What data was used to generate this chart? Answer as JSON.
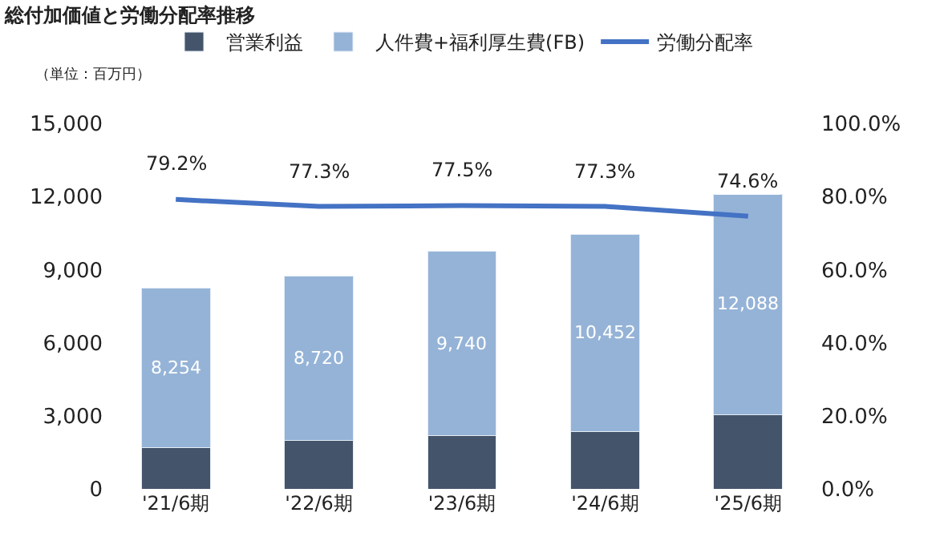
{
  "chart_data": {
    "type": "bar",
    "title": "総付加価値と労働分配率推移",
    "annotations": [
      "（単位：百万円）"
    ],
    "categories": [
      "'21/6期",
      "'22/6期",
      "'23/6期",
      "'24/6期",
      "'25/6期"
    ],
    "stacked": true,
    "legend": "top",
    "totals": [
      "8,254",
      "8,720",
      "9,740",
      "10,452",
      "12,088"
    ],
    "series": [
      {
        "name": "営業利益",
        "color": "#44546a",
        "values": [
          1700,
          2000,
          2200,
          2350,
          3050
        ]
      },
      {
        "name": "人件費+福利厚生費(FB)",
        "color": "#95b3d7",
        "values": [
          6554,
          6720,
          7540,
          8102,
          9038
        ]
      },
      {
        "name": "労働分配率",
        "type": "line",
        "axis": "y2",
        "color": "#4472c4",
        "marker": "none",
        "values": [
          79.2,
          77.3,
          77.5,
          77.3,
          74.6
        ],
        "value_labels": [
          "79.2%",
          "77.3%",
          "77.5%",
          "77.3%",
          "74.6%"
        ]
      }
    ],
    "ylim": [
      0,
      15000
    ],
    "yticks": [
      {
        "value": 0,
        "label": "0"
      },
      {
        "value": 3000,
        "label": "3,000"
      },
      {
        "value": 6000,
        "label": "6,000"
      },
      {
        "value": 9000,
        "label": "9,000"
      },
      {
        "value": 12000,
        "label": "12,000"
      },
      {
        "value": 15000,
        "label": "15,000"
      }
    ],
    "y2lim": [
      0,
      100
    ],
    "y2ticks": [
      {
        "value": 0,
        "label": "0.0%"
      },
      {
        "value": 20,
        "label": "20.0%"
      },
      {
        "value": 40,
        "label": "40.0%"
      },
      {
        "value": 60,
        "label": "60.0%"
      },
      {
        "value": 80,
        "label": "80.0%"
      },
      {
        "value": 100,
        "label": "100.0%"
      }
    ]
  }
}
